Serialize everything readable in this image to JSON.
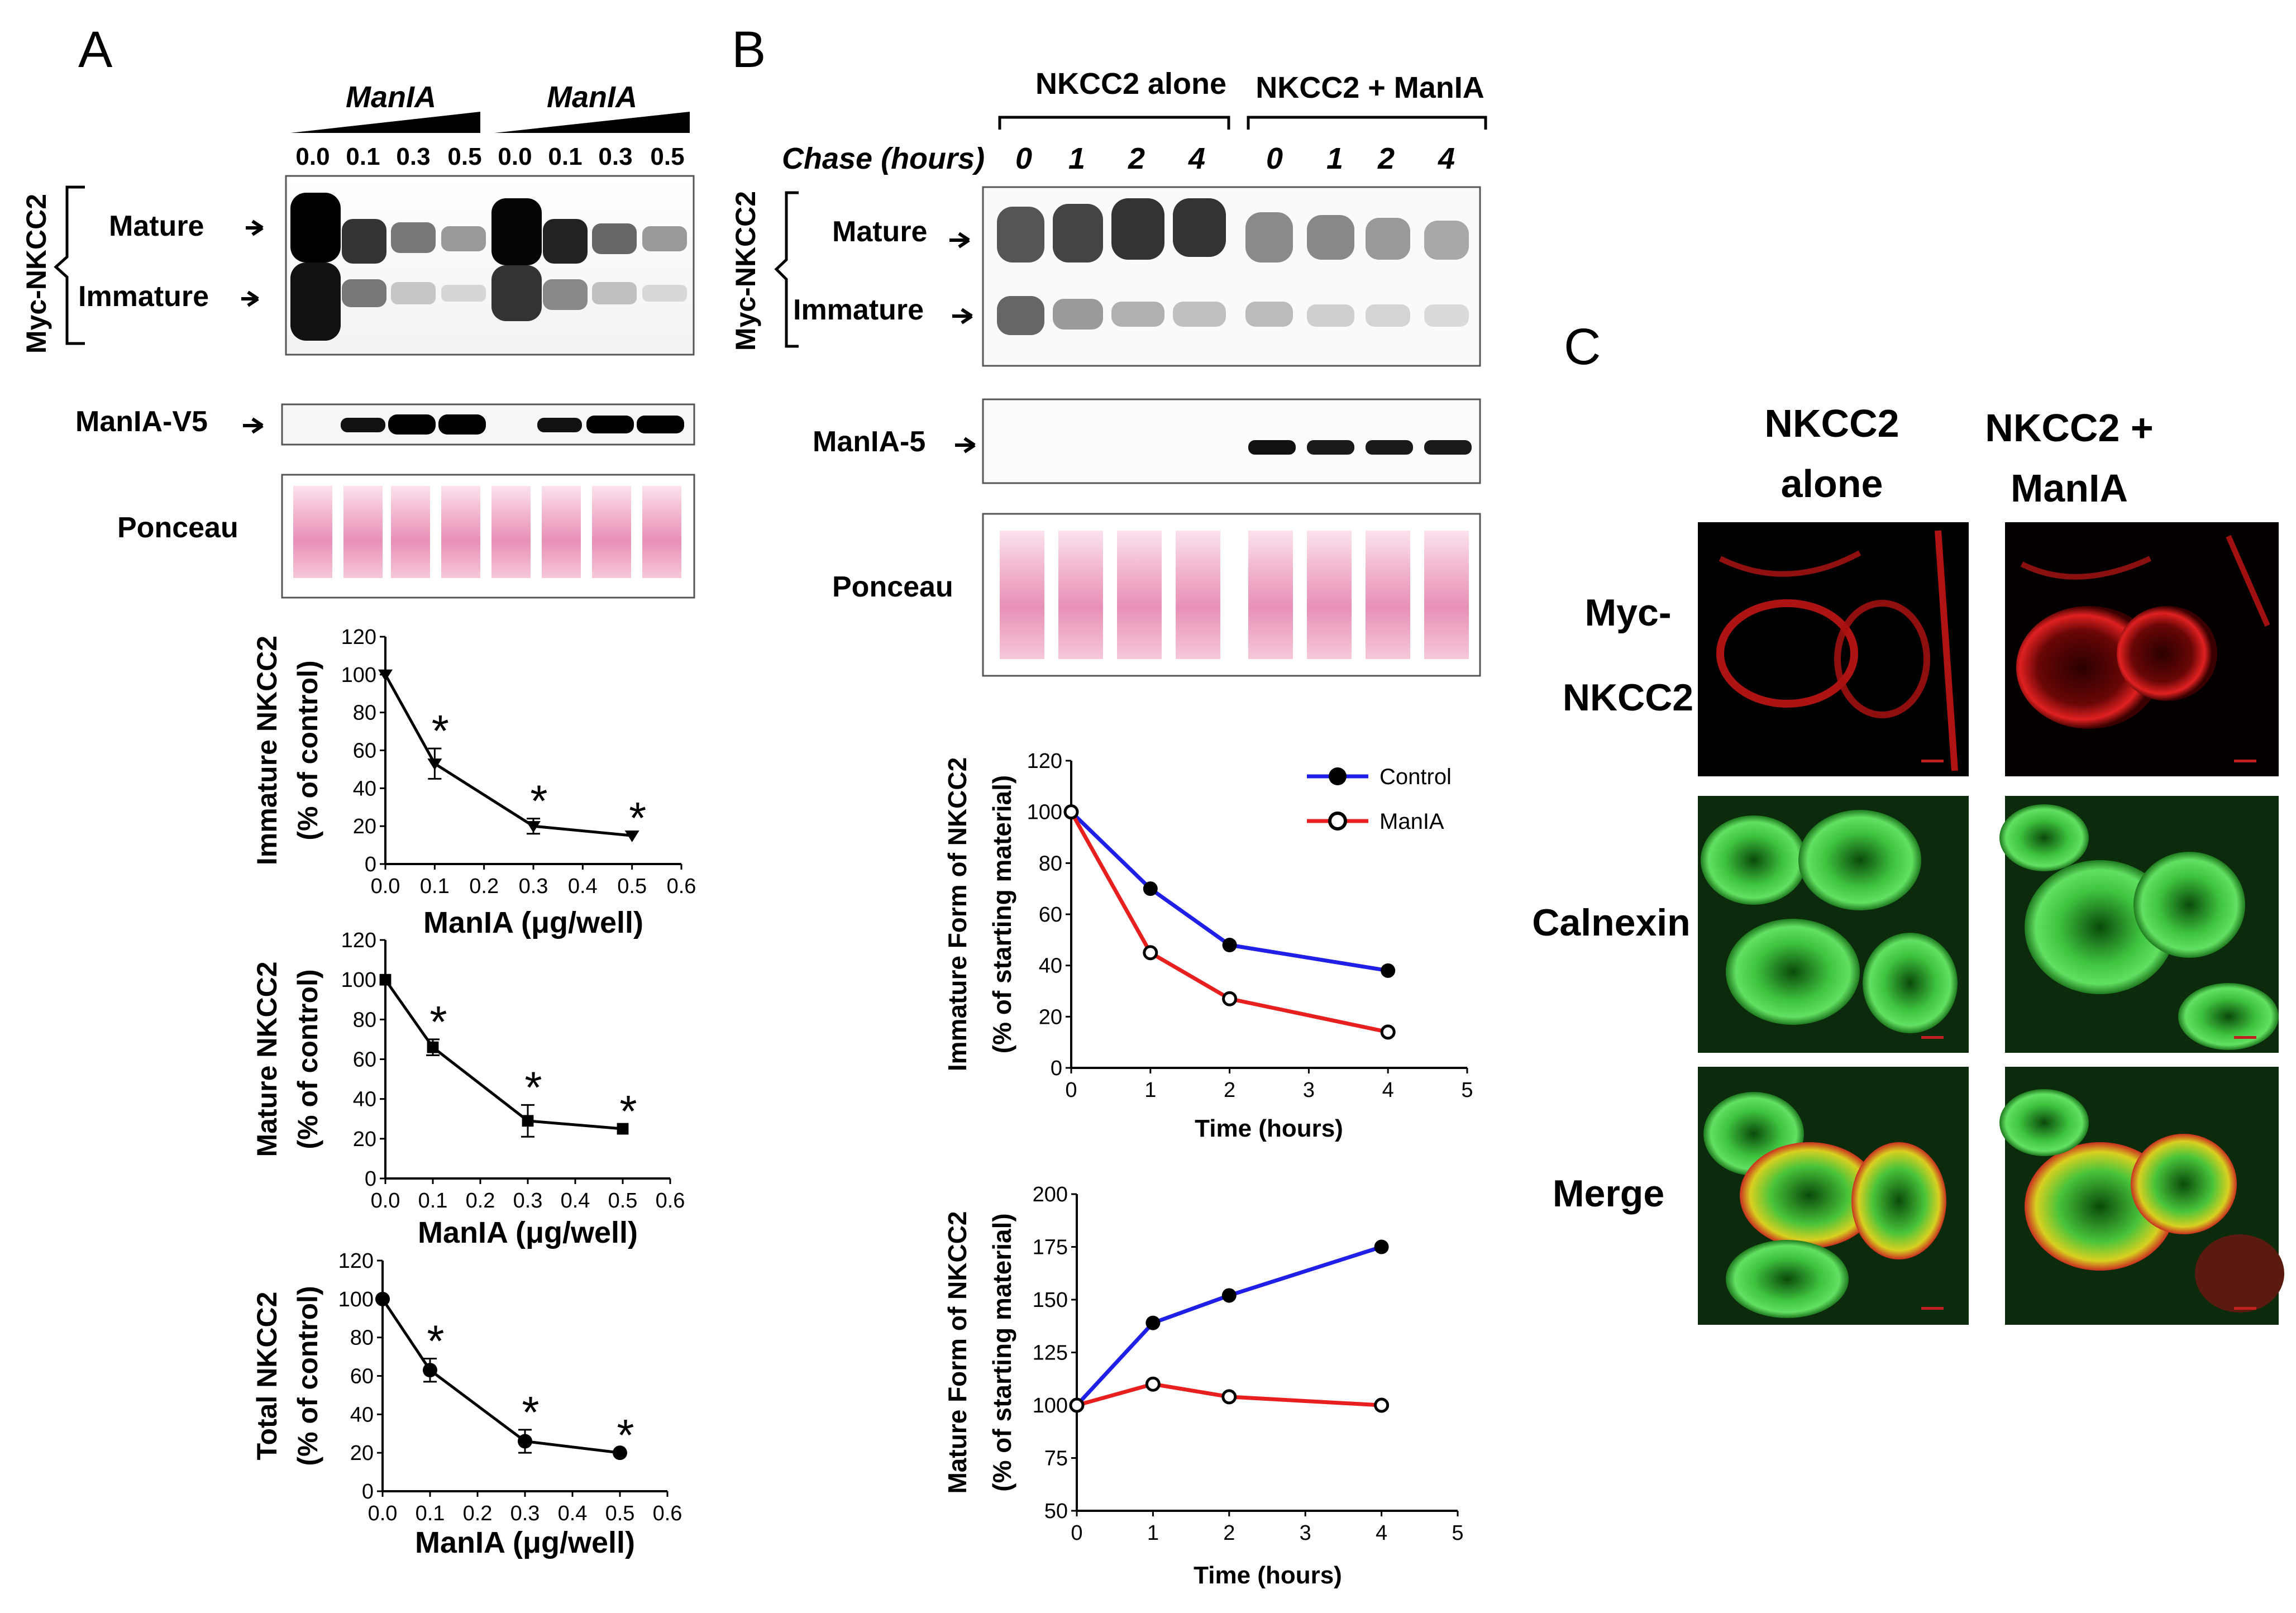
{
  "panel_labels": {
    "a": "A",
    "b": "B",
    "c": "C"
  },
  "panel_a": {
    "treatment": "ManIA",
    "doses": [
      "0.0",
      "0.1",
      "0.3",
      "0.5"
    ],
    "blot_label": "Myc-NKCC2",
    "mature": "Mature",
    "immature": "Immature",
    "v5_label": "ManIA-V5",
    "ponceau": "Ponceau"
  },
  "panel_b": {
    "group1": "NKCC2 alone",
    "group2": "NKCC2 + ManIA",
    "chase_label": "Chase (hours)",
    "chase_times": [
      "0",
      "1",
      "2",
      "4"
    ],
    "blot_label": "Myc-NKCC2",
    "mature": "Mature",
    "immature": "Immature",
    "v5_label": "ManIA-5",
    "ponceau": "Ponceau"
  },
  "panel_c": {
    "col1": [
      "NKCC2",
      "alone"
    ],
    "col2": [
      "NKCC2 +",
      "ManIA"
    ],
    "row1": [
      "Myc-",
      "NKCC2"
    ],
    "row2": "Calnexin",
    "row3": "Merge"
  },
  "colors": {
    "control": "#1f1fe8",
    "manla": "#e81f1f",
    "ponceau": "#f1a7c8",
    "red_cells": "#d81a1a",
    "green_cells": "#30c030"
  },
  "chart_data": [
    {
      "id": "a1",
      "type": "line",
      "ylabel": [
        "Immature NKCC2",
        "(% of control)"
      ],
      "xlabel": "ManIA (μg/well)",
      "x": [
        0.0,
        0.1,
        0.3,
        0.5
      ],
      "y": [
        100,
        53,
        20,
        15
      ],
      "err": [
        0,
        8,
        4,
        0
      ],
      "marker": "triangle",
      "asterisks": [
        "*",
        "*",
        "*"
      ],
      "xlim": [
        0,
        0.6
      ],
      "ylim": [
        0,
        120
      ],
      "xticks": [
        "0.0",
        "0.1",
        "0.2",
        "0.3",
        "0.4",
        "0.5",
        "0.6"
      ],
      "yticks": [
        "0",
        "20",
        "40",
        "60",
        "80",
        "100",
        "120"
      ]
    },
    {
      "id": "a2",
      "type": "line",
      "ylabel": [
        "Mature NKCC2",
        "(% of control)"
      ],
      "xlabel": "ManIA (μg/well)",
      "x": [
        0.0,
        0.1,
        0.3,
        0.5
      ],
      "y": [
        100,
        66,
        29,
        25
      ],
      "err": [
        0,
        4,
        8,
        0
      ],
      "marker": "square",
      "asterisks": [
        "*",
        "*",
        "*"
      ],
      "xlim": [
        0,
        0.6
      ],
      "ylim": [
        0,
        120
      ],
      "xticks": [
        "0.0",
        "0.1",
        "0.2",
        "0.3",
        "0.4",
        "0.5",
        "0.6"
      ],
      "yticks": [
        "0",
        "20",
        "40",
        "60",
        "80",
        "100",
        "120"
      ]
    },
    {
      "id": "a3",
      "type": "line",
      "ylabel": [
        "Total NKCC2",
        "(% of control)"
      ],
      "xlabel": "ManIA (μg/well)",
      "x": [
        0.0,
        0.1,
        0.3,
        0.5
      ],
      "y": [
        100,
        63,
        26,
        20
      ],
      "err": [
        0,
        6,
        6,
        0
      ],
      "marker": "circle",
      "asterisks": [
        "*",
        "*",
        "*"
      ],
      "xlim": [
        0,
        0.6
      ],
      "ylim": [
        0,
        120
      ],
      "xticks": [
        "0.0",
        "0.1",
        "0.2",
        "0.3",
        "0.4",
        "0.5",
        "0.6"
      ],
      "yticks": [
        "0",
        "20",
        "40",
        "60",
        "80",
        "100",
        "120"
      ]
    },
    {
      "id": "b1",
      "type": "line",
      "ylabel": [
        "Immature Form of NKCC2",
        "(% of starting material)"
      ],
      "xlabel": "Time (hours)",
      "x": [
        0,
        1,
        2,
        4
      ],
      "series": [
        {
          "name": "Control",
          "values": [
            100,
            70,
            48,
            38
          ]
        },
        {
          "name": "ManIA",
          "values": [
            100,
            45,
            27,
            14
          ]
        }
      ],
      "xlim": [
        0,
        5
      ],
      "ylim": [
        0,
        120
      ],
      "xticks": [
        "0",
        "1",
        "2",
        "3",
        "4",
        "5"
      ],
      "yticks": [
        "0",
        "20",
        "40",
        "60",
        "80",
        "100",
        "120"
      ]
    },
    {
      "id": "b2",
      "type": "line",
      "ylabel": [
        "Mature Form of NKCC2",
        "(% of starting material)"
      ],
      "xlabel": "Time (hours)",
      "x": [
        0,
        1,
        2,
        4
      ],
      "series": [
        {
          "name": "Control",
          "values": [
            100,
            139,
            152,
            175
          ]
        },
        {
          "name": "ManIA",
          "values": [
            100,
            110,
            104,
            100
          ]
        }
      ],
      "xlim": [
        0,
        5
      ],
      "ylim": [
        50,
        200
      ],
      "xticks": [
        "0",
        "1",
        "2",
        "3",
        "4",
        "5"
      ],
      "yticks": [
        "50",
        "75",
        "100",
        "125",
        "150",
        "175",
        "200"
      ]
    }
  ]
}
